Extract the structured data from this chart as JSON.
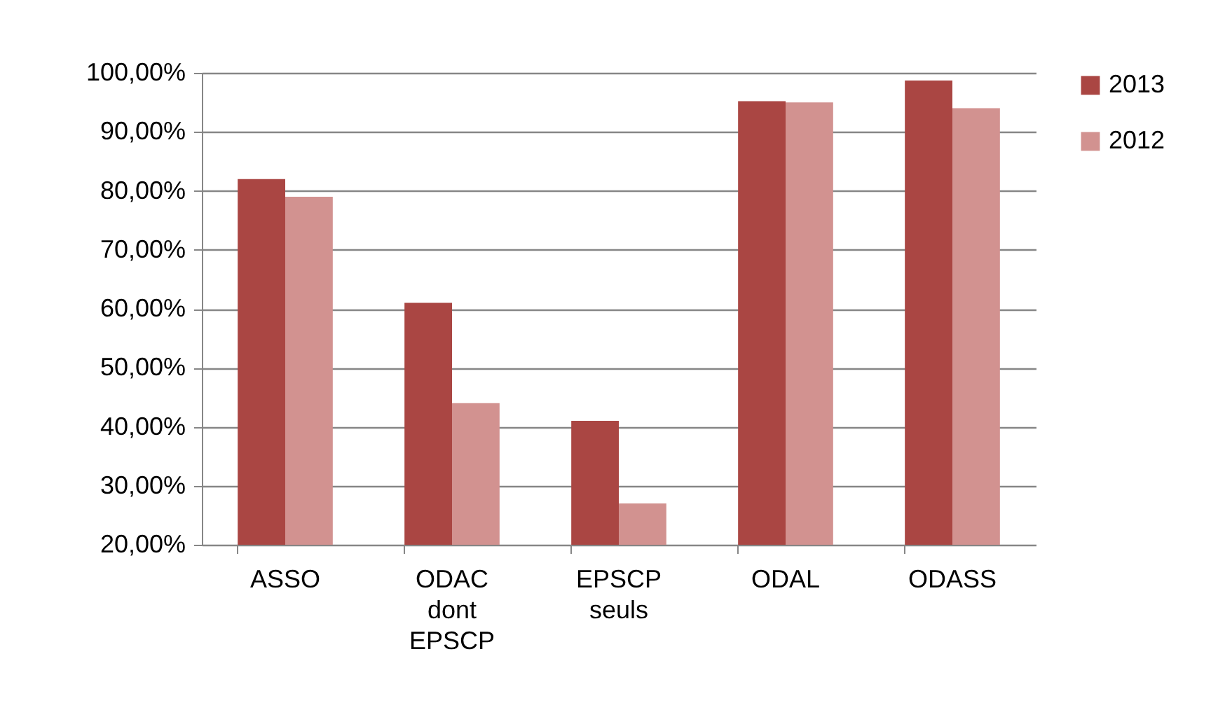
{
  "chart_data": {
    "type": "bar",
    "categories": [
      "ASSO",
      "ODAC dont EPSCP",
      "EPSCP seuls",
      "ODAL",
      "ODASS"
    ],
    "series": [
      {
        "name": "2013",
        "color": "#aa4643",
        "values": [
          82,
          61,
          41,
          95.2,
          98.7
        ]
      },
      {
        "name": "2012",
        "color": "#d29290",
        "values": [
          79,
          44,
          27,
          95,
          94
        ]
      }
    ],
    "ylim": [
      20,
      100
    ],
    "yticks": [
      {
        "value": 20,
        "label": "20,00%"
      },
      {
        "value": 30,
        "label": "30,00%"
      },
      {
        "value": 40,
        "label": "40,00%"
      },
      {
        "value": 50,
        "label": "50,00%"
      },
      {
        "value": 60,
        "label": "60,00%"
      },
      {
        "value": 70,
        "label": "70,00%"
      },
      {
        "value": 80,
        "label": "80,00%"
      },
      {
        "value": 90,
        "label": "90,00%"
      },
      {
        "value": 100,
        "label": "100,00%"
      }
    ],
    "grid": "y",
    "legend": "right"
  }
}
